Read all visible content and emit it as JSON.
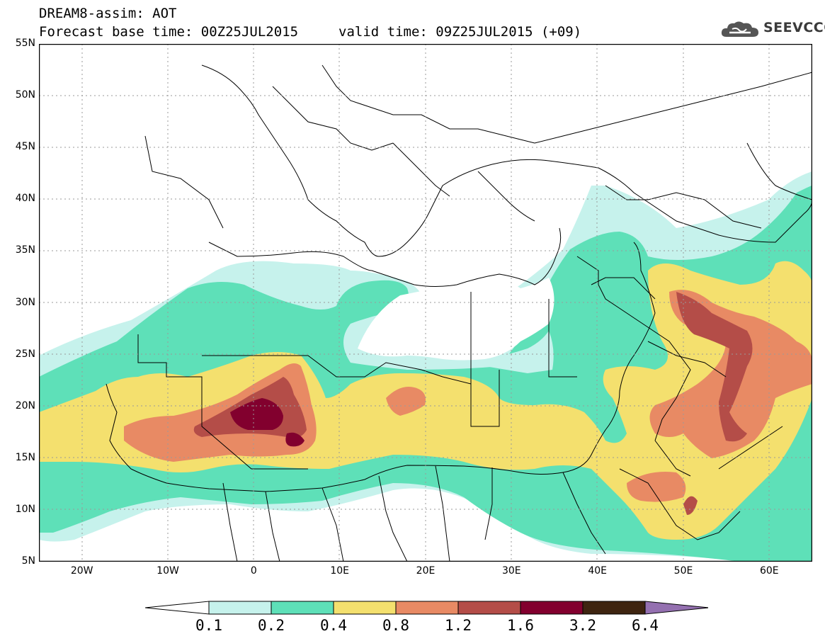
{
  "header": {
    "title": "DREAM8-assim: AOT",
    "base_time": "Forecast base time: 00Z25JUL2015",
    "valid_time": "valid time: 09Z25JUL2015 (+09)"
  },
  "logo": {
    "text": "SEEVCCC",
    "icon": "cloud-icon",
    "color": "#555555"
  },
  "map": {
    "variable": "AOT",
    "lat_range": [
      5,
      55
    ],
    "lon_range": [
      -25,
      65
    ],
    "lat_labels": [
      "55N",
      "50N",
      "45N",
      "40N",
      "35N",
      "30N",
      "25N",
      "20N",
      "15N",
      "10N",
      "5N"
    ],
    "lon_labels": [
      "20W",
      "10W",
      "0",
      "10E",
      "20E",
      "30E",
      "40E",
      "50E",
      "60E"
    ],
    "colors": {
      "c1": "#c6f2ec",
      "c2": "#5ee0b8",
      "c3": "#f4e06e",
      "c4": "#e88a64",
      "c5": "#b44d48",
      "c6": "#82002e",
      "c7": "#3e2410",
      "c8": "#9470b0",
      "border": "#000000"
    }
  },
  "colorbar": {
    "labels": [
      "0.1",
      "0.2",
      "0.4",
      "0.8",
      "1.2",
      "1.6",
      "3.2",
      "6.4"
    ],
    "colors": [
      "#ffffff",
      "#c6f2ec",
      "#5ee0b8",
      "#f4e06e",
      "#e88a64",
      "#b44d48",
      "#82002e",
      "#3e2410",
      "#9470b0"
    ]
  }
}
